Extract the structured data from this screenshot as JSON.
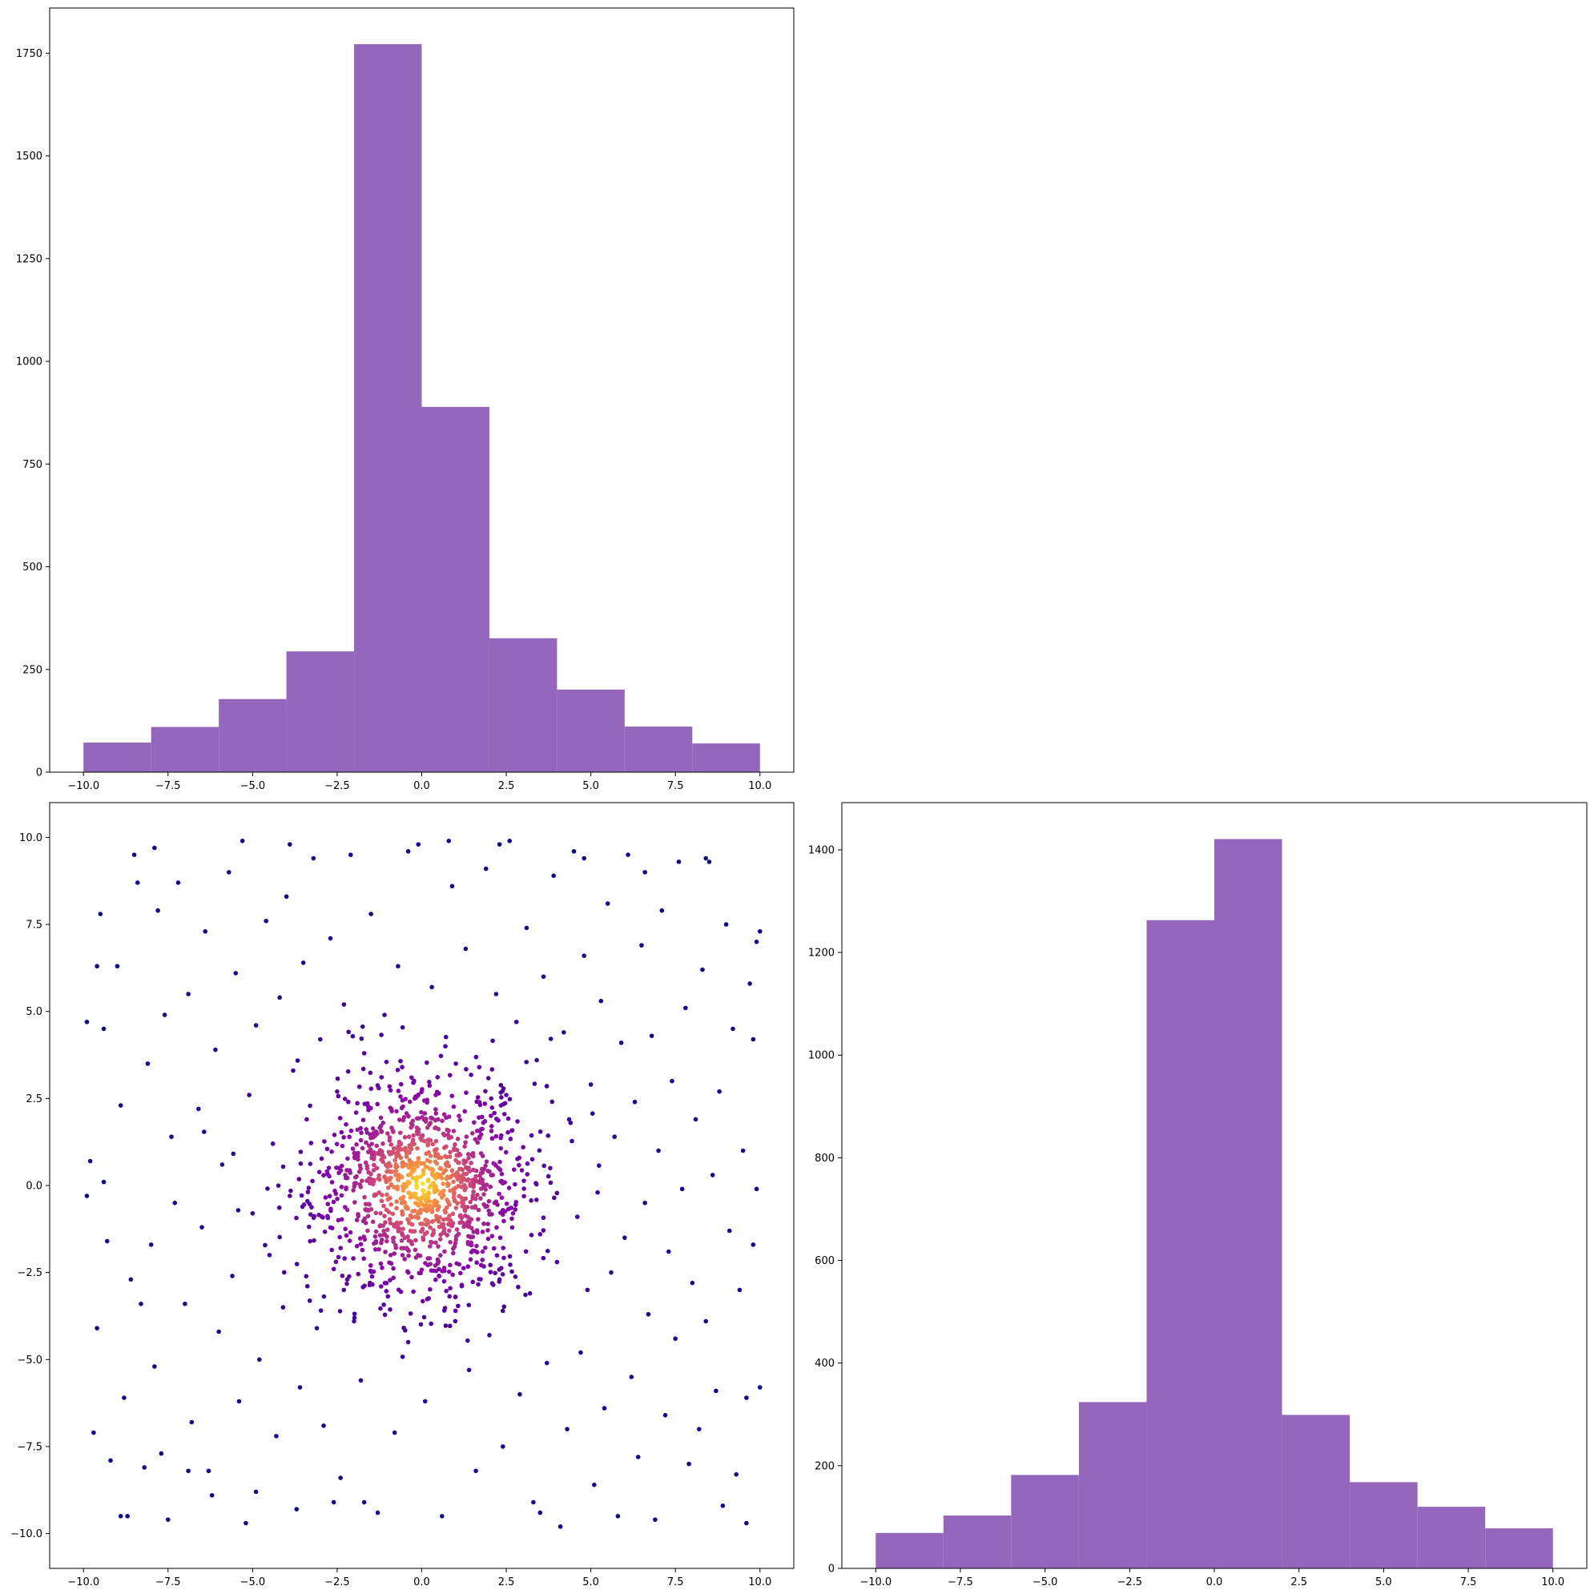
{
  "chart_data": [
    {
      "id": "hist_x",
      "type": "bar",
      "variant": "histogram",
      "color": "#9467bd",
      "bin_edges": [
        -10,
        -8,
        -6,
        -4,
        -2,
        0,
        2,
        4,
        6,
        8,
        10
      ],
      "values": [
        72,
        110,
        178,
        294,
        1772,
        889,
        326,
        201,
        111,
        70
      ],
      "xlim": [
        -11,
        11
      ],
      "ylim": [
        0,
        1860
      ],
      "xticks": [
        -10.0,
        -7.5,
        -5.0,
        -2.5,
        0.0,
        2.5,
        5.0,
        7.5,
        10.0
      ],
      "yticks": [
        0,
        250,
        500,
        750,
        1000,
        1250,
        1500,
        1750
      ],
      "title": "",
      "xlabel": "",
      "ylabel": ""
    },
    {
      "id": "scatter_xy",
      "type": "scatter",
      "colormap": "plasma",
      "color_encoding": "point density (dark purple = sparse, yellow = dense)",
      "xlim": [
        -11,
        11
      ],
      "ylim": [
        -11,
        11
      ],
      "xticks": [
        -10.0,
        -7.5,
        -5.0,
        -2.5,
        0.0,
        2.5,
        5.0,
        7.5,
        10.0
      ],
      "yticks": [
        -10.0,
        -7.5,
        -5.0,
        -2.5,
        0.0,
        2.5,
        5.0,
        7.5,
        10.0
      ],
      "points": [
        [
          -9.9,
          4.7
        ],
        [
          -9.8,
          0.7
        ],
        [
          -9.7,
          -7.1
        ],
        [
          -9.6,
          -4.1
        ],
        [
          -9.5,
          7.8
        ],
        [
          -9.4,
          4.5
        ],
        [
          -9.4,
          0.1
        ],
        [
          -9.3,
          -1.6
        ],
        [
          -9.0,
          6.3
        ],
        [
          -8.9,
          2.3
        ],
        [
          -8.8,
          -6.1
        ],
        [
          -8.7,
          -9.5
        ],
        [
          -8.6,
          -2.7
        ],
        [
          -8.5,
          9.5
        ],
        [
          -8.4,
          8.7
        ],
        [
          -8.3,
          -3.4
        ],
        [
          -8.1,
          3.5
        ],
        [
          -8.0,
          -1.7
        ],
        [
          -7.9,
          -5.2
        ],
        [
          -7.8,
          7.9
        ],
        [
          -7.7,
          -7.7
        ],
        [
          -7.6,
          4.9
        ],
        [
          -7.5,
          -9.6
        ],
        [
          -7.4,
          1.4
        ],
        [
          -7.3,
          -0.5
        ],
        [
          -7.2,
          8.7
        ],
        [
          -7.0,
          -3.4
        ],
        [
          -6.9,
          5.5
        ],
        [
          -6.8,
          -6.8
        ],
        [
          -6.6,
          2.2
        ],
        [
          -6.5,
          -1.2
        ],
        [
          -6.4,
          7.3
        ],
        [
          -6.3,
          -8.2
        ],
        [
          -6.1,
          3.9
        ],
        [
          -6.0,
          -4.2
        ],
        [
          -5.9,
          0.6
        ],
        [
          -5.7,
          9.0
        ],
        [
          -5.6,
          -2.6
        ],
        [
          -5.5,
          6.1
        ],
        [
          -5.4,
          -6.2
        ],
        [
          -5.3,
          9.9
        ],
        [
          -5.2,
          -9.7
        ],
        [
          -5.1,
          2.6
        ],
        [
          -5.0,
          -0.8
        ],
        [
          -4.9,
          4.6
        ],
        [
          -4.8,
          -5.0
        ],
        [
          -4.6,
          7.6
        ],
        [
          -4.5,
          -2.0
        ],
        [
          -4.4,
          1.2
        ],
        [
          -4.3,
          -7.2
        ],
        [
          -4.2,
          5.4
        ],
        [
          -4.1,
          -3.5
        ],
        [
          -4.0,
          8.3
        ],
        [
          -3.9,
          -0.3
        ],
        [
          -3.8,
          3.3
        ],
        [
          -3.7,
          -9.3
        ],
        [
          -3.6,
          -5.8
        ],
        [
          -3.5,
          6.4
        ],
        [
          -3.4,
          1.9
        ],
        [
          -3.3,
          -1.6
        ],
        [
          -3.2,
          9.4
        ],
        [
          -3.1,
          -4.1
        ],
        [
          -3.0,
          4.2
        ],
        [
          -2.9,
          -6.9
        ],
        [
          -2.8,
          0.4
        ],
        [
          -2.7,
          7.1
        ],
        [
          -2.6,
          -2.4
        ],
        [
          -2.5,
          2.7
        ],
        [
          -2.4,
          -8.4
        ],
        [
          -2.3,
          5.2
        ],
        [
          -2.2,
          -0.7
        ],
        [
          -2.1,
          9.5
        ],
        [
          -2.0,
          -3.9
        ],
        [
          -1.9,
          1.6
        ],
        [
          -1.8,
          -5.6
        ],
        [
          -1.7,
          3.8
        ],
        [
          -1.6,
          -1.3
        ],
        [
          -1.5,
          7.8
        ],
        [
          -1.4,
          0.9
        ],
        [
          -1.3,
          -9.4
        ],
        [
          -1.2,
          -2.9
        ],
        [
          -1.1,
          4.9
        ],
        [
          -1.0,
          -0.4
        ],
        [
          -0.9,
          2.2
        ],
        [
          -0.8,
          -7.1
        ],
        [
          -0.7,
          6.3
        ],
        [
          -0.6,
          -1.8
        ],
        [
          -0.5,
          0.6
        ],
        [
          -0.4,
          -4.5
        ],
        [
          -0.3,
          3.1
        ],
        [
          -0.2,
          -0.9
        ],
        [
          -0.1,
          9.8
        ],
        [
          0.0,
          1.3
        ],
        [
          0.1,
          -6.2
        ],
        [
          0.2,
          -0.2
        ],
        [
          0.3,
          5.7
        ],
        [
          0.4,
          -2.3
        ],
        [
          0.5,
          0.8
        ],
        [
          0.6,
          -9.5
        ],
        [
          0.7,
          4.0
        ],
        [
          0.8,
          -1.1
        ],
        [
          0.9,
          8.6
        ],
        [
          1.0,
          -3.6
        ],
        [
          1.1,
          2.0
        ],
        [
          1.2,
          -0.6
        ],
        [
          1.3,
          6.8
        ],
        [
          1.4,
          -5.3
        ],
        [
          1.5,
          1.5
        ],
        [
          1.6,
          -8.2
        ],
        [
          1.7,
          3.4
        ],
        [
          1.8,
          -1.9
        ],
        [
          1.9,
          9.1
        ],
        [
          2.0,
          -4.3
        ],
        [
          2.1,
          0.3
        ],
        [
          2.2,
          5.5
        ],
        [
          2.3,
          -2.7
        ],
        [
          2.4,
          -7.5
        ],
        [
          2.5,
          2.6
        ],
        [
          2.6,
          9.9
        ],
        [
          2.7,
          -0.8
        ],
        [
          2.8,
          4.7
        ],
        [
          2.9,
          -6.0
        ],
        [
          3.0,
          1.1
        ],
        [
          3.1,
          7.4
        ],
        [
          3.2,
          -3.1
        ],
        [
          3.3,
          -9.1
        ],
        [
          3.4,
          3.6
        ],
        [
          3.5,
          -1.4
        ],
        [
          3.6,
          6.0
        ],
        [
          3.7,
          -5.1
        ],
        [
          3.8,
          0.5
        ],
        [
          3.9,
          8.9
        ],
        [
          4.0,
          -2.2
        ],
        [
          4.1,
          -9.8
        ],
        [
          4.2,
          4.4
        ],
        [
          4.3,
          -7.0
        ],
        [
          4.4,
          1.8
        ],
        [
          4.5,
          9.6
        ],
        [
          4.6,
          -0.9
        ],
        [
          4.7,
          -4.8
        ],
        [
          4.8,
          6.6
        ],
        [
          4.9,
          -3.0
        ],
        [
          5.0,
          2.9
        ],
        [
          5.1,
          -8.6
        ],
        [
          5.2,
          -0.2
        ],
        [
          5.3,
          5.3
        ],
        [
          5.4,
          -6.4
        ],
        [
          5.5,
          8.1
        ],
        [
          5.6,
          -2.5
        ],
        [
          5.7,
          1.4
        ],
        [
          5.8,
          -9.5
        ],
        [
          5.9,
          4.1
        ],
        [
          6.0,
          -1.5
        ],
        [
          6.1,
          9.5
        ],
        [
          6.2,
          -5.5
        ],
        [
          6.3,
          2.4
        ],
        [
          6.4,
          -7.8
        ],
        [
          6.5,
          6.9
        ],
        [
          6.6,
          -0.5
        ],
        [
          6.7,
          -3.7
        ],
        [
          6.8,
          4.3
        ],
        [
          6.9,
          -9.6
        ],
        [
          7.0,
          1.0
        ],
        [
          7.1,
          7.9
        ],
        [
          7.2,
          -6.6
        ],
        [
          7.3,
          -1.9
        ],
        [
          7.4,
          3.0
        ],
        [
          7.5,
          -4.4
        ],
        [
          7.6,
          9.3
        ],
        [
          7.7,
          -0.1
        ],
        [
          7.8,
          5.1
        ],
        [
          7.9,
          -8.0
        ],
        [
          8.0,
          -2.8
        ],
        [
          8.1,
          1.9
        ],
        [
          8.2,
          -7.0
        ],
        [
          8.3,
          6.2
        ],
        [
          8.4,
          -3.9
        ],
        [
          8.5,
          9.3
        ],
        [
          8.6,
          0.3
        ],
        [
          8.7,
          -5.9
        ],
        [
          8.8,
          2.7
        ],
        [
          8.9,
          -9.2
        ],
        [
          9.0,
          7.5
        ],
        [
          9.1,
          -1.3
        ],
        [
          9.2,
          4.5
        ],
        [
          9.3,
          -8.3
        ],
        [
          9.4,
          -3.0
        ],
        [
          9.5,
          1.0
        ],
        [
          9.6,
          -6.1
        ],
        [
          9.7,
          5.8
        ],
        [
          9.8,
          -1.7
        ],
        [
          9.9,
          7.0
        ],
        [
          10.0,
          -5.8
        ],
        [
          10.0,
          7.3
        ],
        [
          9.9,
          -0.1
        ],
        [
          9.8,
          4.2
        ],
        [
          -9.9,
          -0.3
        ],
        [
          -9.6,
          6.3
        ],
        [
          -9.2,
          -7.9
        ],
        [
          -8.9,
          -9.5
        ],
        [
          -8.2,
          -8.1
        ],
        [
          -7.9,
          9.7
        ],
        [
          -6.9,
          -8.2
        ],
        [
          -6.2,
          -8.9
        ],
        [
          -4.9,
          -8.8
        ],
        [
          -3.9,
          9.8
        ],
        [
          -2.6,
          -9.1
        ],
        [
          -1.7,
          -9.1
        ],
        [
          -0.4,
          9.6
        ],
        [
          0.8,
          9.9
        ],
        [
          2.3,
          9.8
        ],
        [
          3.5,
          -9.4
        ],
        [
          4.8,
          9.4
        ],
        [
          6.6,
          9.0
        ],
        [
          8.4,
          9.4
        ],
        [
          9.6,
          -9.7
        ]
      ],
      "title": "",
      "xlabel": "",
      "ylabel": ""
    },
    {
      "id": "hist_y",
      "type": "bar",
      "variant": "histogram",
      "color": "#9467bd",
      "bin_edges": [
        -10,
        -8,
        -6,
        -4,
        -2,
        0,
        2,
        4,
        6,
        8,
        10
      ],
      "values": [
        69,
        103,
        182,
        324,
        1263,
        1421,
        299,
        168,
        120,
        78
      ],
      "xlim": [
        -11,
        11
      ],
      "ylim": [
        0,
        1492
      ],
      "xticks": [
        -10.0,
        -7.5,
        -5.0,
        -2.5,
        0.0,
        2.5,
        5.0,
        7.5,
        10.0
      ],
      "yticks": [
        0,
        200,
        400,
        600,
        800,
        1000,
        1200,
        1400
      ],
      "title": "",
      "xlabel": "",
      "ylabel": ""
    }
  ]
}
